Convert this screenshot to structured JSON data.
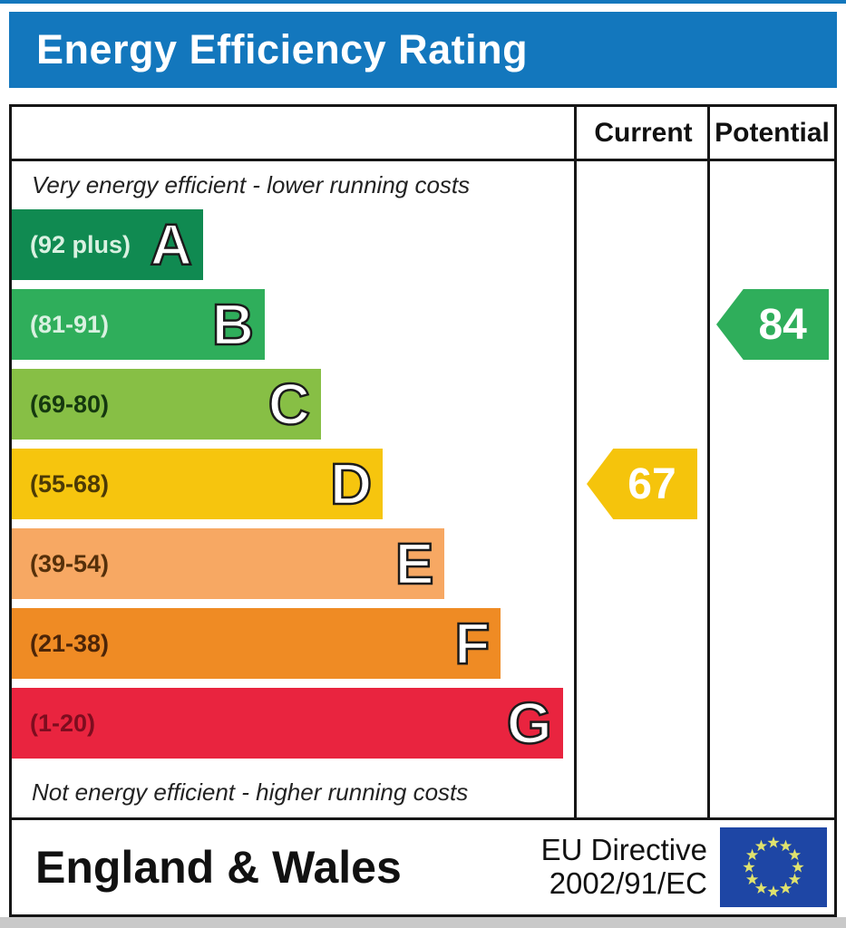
{
  "title": "Energy Efficiency Rating",
  "header": {
    "current_label": "Current",
    "potential_label": "Potential"
  },
  "captions": {
    "top": "Very energy efficient - lower running costs",
    "bottom": "Not energy efficient - higher running costs"
  },
  "footer": {
    "region": "England & Wales",
    "directive_line1": "EU Directive",
    "directive_line2": "2002/91/EC"
  },
  "colors": {
    "title_bar": "#1377bd",
    "top_strip": "#1377bd",
    "border": "#161616",
    "flag_blue": "#1e46a5",
    "flag_stars": "#dfe26e",
    "bottom_strip": "#c9c9c9"
  },
  "chart_data": {
    "type": "bar",
    "title": "Energy Efficiency Rating",
    "categories": [
      "A",
      "B",
      "C",
      "D",
      "E",
      "F",
      "G"
    ],
    "ranges": [
      "(92 plus)",
      "(81-91)",
      "(69-80)",
      "(55-68)",
      "(39-54)",
      "(21-38)",
      "(1-20)"
    ],
    "score_ranges": [
      [
        92,
        100
      ],
      [
        81,
        91
      ],
      [
        69,
        80
      ],
      [
        55,
        68
      ],
      [
        39,
        54
      ],
      [
        21,
        38
      ],
      [
        1,
        20
      ]
    ],
    "colors": [
      "#108a51",
      "#2fae5b",
      "#87bf45",
      "#f6c50e",
      "#f7a863",
      "#ef8b24",
      "#e9243f"
    ],
    "range_text_colors": [
      "#d9f1e1",
      "#d9f1e1",
      "#15380f",
      "#4c3a06",
      "#55300a",
      "#4c2508",
      "#7d0d1f"
    ],
    "bar_length_pct": [
      34,
      45,
      55,
      66,
      77,
      87,
      98
    ],
    "columns": [
      "Current",
      "Potential"
    ],
    "current": {
      "value": "67",
      "band": "D",
      "arrow_color": "#f5c40c"
    },
    "potential": {
      "value": "84",
      "band": "B",
      "arrow_color": "#2fae5b"
    }
  }
}
